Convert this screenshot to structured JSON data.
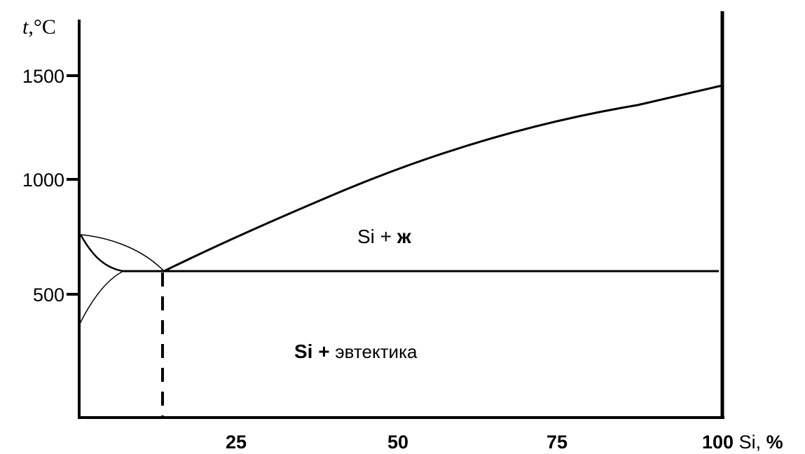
{
  "diagram": {
    "y_axis_title_t": "t",
    "y_axis_title_unit": ",°C",
    "x_axis_title_main": "100",
    "x_axis_title_unit": " Si, ",
    "x_axis_title_percent": "%",
    "y_ticks": [
      "1500",
      "1000",
      "500"
    ],
    "x_ticks": [
      "25",
      "50",
      "75"
    ],
    "region_liquid_si": "Si + ",
    "region_liquid_zh": "ж",
    "region_eutectic_si": "Si",
    "region_eutectic_plus": " + ",
    "region_eutectic_word": "эвтектика",
    "line_color": "#000000",
    "background_color": "#ffffff"
  }
}
